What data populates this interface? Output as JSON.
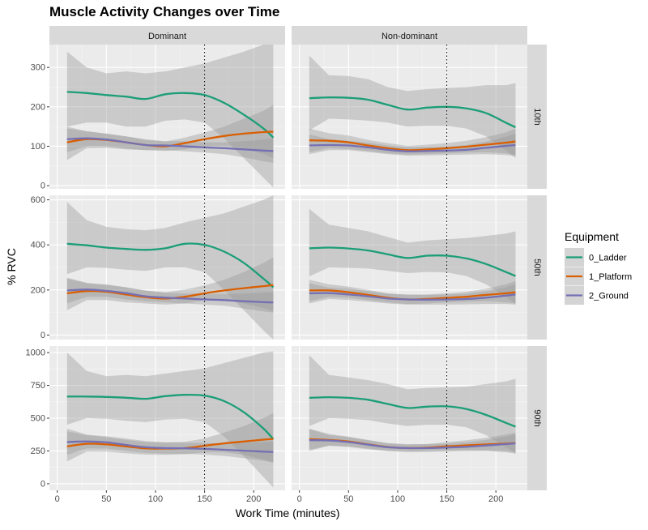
{
  "chart_data": {
    "type": "line",
    "title": "Muscle Activity Changes over Time",
    "xlabel": "Work Time (minutes)",
    "ylabel": "% RVC",
    "legend_title": "Equipment",
    "legend_position": "right",
    "grid": true,
    "reference_line_x": 150,
    "xlim": [
      -8,
      232
    ],
    "x_ticks": [
      0,
      50,
      100,
      150,
      200
    ],
    "x": [
      10,
      30,
      50,
      70,
      90,
      110,
      130,
      150,
      170,
      190,
      210,
      220
    ],
    "col_labels": [
      "Dominant",
      "Non-dominant"
    ],
    "row_labels": [
      "10th",
      "50th",
      "90th"
    ],
    "series_meta": [
      {
        "name": "0_Ladder",
        "color": "#1B9E77"
      },
      {
        "name": "1_Platform",
        "color": "#D95F02"
      },
      {
        "name": "2_Ground",
        "color": "#7570B3"
      }
    ],
    "panels": [
      {
        "row": "10th",
        "col": "Dominant",
        "ylim": [
          -8,
          358
        ],
        "y_ticks": [
          0,
          100,
          200,
          300
        ],
        "series": [
          {
            "values": [
              238,
              235,
              230,
              226,
              220,
              232,
              235,
              230,
              210,
              180,
              145,
              122
            ],
            "lower": [
              150,
              160,
              160,
              150,
              150,
              165,
              168,
              160,
              120,
              70,
              20,
              -5
            ],
            "upper": [
              340,
              300,
              285,
              290,
              285,
              290,
              300,
              310,
              325,
              340,
              358,
              358
            ]
          },
          {
            "values": [
              110,
              118,
              116,
              110,
              103,
              100,
              108,
              118,
              126,
              132,
              136,
              137
            ],
            "lower": [
              65,
              95,
              96,
              92,
              90,
              88,
              92,
              100,
              100,
              95,
              80,
              70
            ],
            "upper": [
              145,
              138,
              132,
              125,
              118,
              112,
              122,
              135,
              150,
              170,
              190,
              205
            ]
          },
          {
            "values": [
              118,
              120,
              117,
              110,
              103,
              102,
              100,
              97,
              95,
              92,
              89,
              88
            ],
            "lower": [
              85,
              100,
              100,
              94,
              90,
              90,
              87,
              84,
              80,
              72,
              62,
              58
            ],
            "upper": [
              150,
              138,
              132,
              125,
              116,
              113,
              113,
              110,
              110,
              113,
              117,
              120
            ]
          }
        ]
      },
      {
        "row": "10th",
        "col": "Non-dominant",
        "ylim": [
          -8,
          358
        ],
        "y_ticks": [
          0,
          100,
          200,
          300
        ],
        "series": [
          {
            "values": [
              222,
              224,
              223,
              218,
              205,
              193,
              198,
              200,
              196,
              184,
              160,
              148
            ],
            "lower": [
              140,
              170,
              168,
              165,
              160,
              150,
              152,
              152,
              145,
              125,
              90,
              70
            ],
            "upper": [
              330,
              280,
              278,
              270,
              250,
              240,
              245,
              248,
              250,
              255,
              255,
              260
            ]
          },
          {
            "values": [
              115,
              114,
              110,
              102,
              95,
              90,
              92,
              95,
              99,
              104,
              109,
              112
            ],
            "lower": [
              85,
              95,
              93,
              88,
              82,
              79,
              80,
              82,
              84,
              85,
              82,
              78
            ],
            "upper": [
              145,
              133,
              127,
              116,
              108,
              101,
              104,
              108,
              114,
              123,
              135,
              145
            ]
          },
          {
            "values": [
              102,
              103,
              102,
              97,
              91,
              87,
              88,
              89,
              91,
              96,
              101,
              103
            ],
            "lower": [
              80,
              90,
              90,
              85,
              80,
              76,
              77,
              78,
              79,
              80,
              78,
              75
            ],
            "upper": [
              130,
              118,
              114,
              109,
              102,
              98,
              99,
              100,
              103,
              112,
              124,
              132
            ]
          }
        ]
      },
      {
        "row": "50th",
        "col": "Dominant",
        "ylim": [
          -20,
          620
        ],
        "y_ticks": [
          0,
          200,
          400,
          600
        ],
        "series": [
          {
            "values": [
              405,
              398,
              388,
              382,
              378,
              385,
              405,
              400,
              370,
              320,
              250,
              212
            ],
            "lower": [
              270,
              300,
              298,
              290,
              285,
              300,
              300,
              280,
              200,
              110,
              20,
              -20
            ],
            "upper": [
              590,
              510,
              480,
              470,
              465,
              475,
              500,
              520,
              540,
              570,
              600,
              620
            ]
          },
          {
            "values": [
              185,
              195,
              192,
              180,
              168,
              162,
              170,
              185,
              198,
              208,
              217,
              222
            ],
            "lower": [
              110,
              155,
              155,
              145,
              140,
              135,
              140,
              155,
              155,
              140,
              120,
              105
            ],
            "upper": [
              250,
              230,
              225,
              212,
              198,
              190,
              202,
              220,
              245,
              280,
              320,
              345
            ]
          },
          {
            "values": [
              198,
              202,
              196,
              186,
              172,
              166,
              162,
              158,
              155,
              150,
              146,
              145
            ],
            "lower": [
              140,
              170,
              170,
              158,
              150,
              145,
              140,
              135,
              130,
              118,
              105,
              100
            ],
            "upper": [
              255,
              232,
              222,
              212,
              196,
              188,
              184,
              182,
              182,
              184,
              188,
              190
            ]
          }
        ]
      },
      {
        "row": "50th",
        "col": "Non-dominant",
        "ylim": [
          -20,
          620
        ],
        "y_ticks": [
          0,
          200,
          400,
          600
        ],
        "series": [
          {
            "values": [
              385,
              388,
              384,
              375,
              358,
              342,
              352,
              352,
              340,
              315,
              280,
              262
            ],
            "lower": [
              260,
              300,
              298,
              295,
              285,
              275,
              280,
              278,
              262,
              225,
              170,
              140
            ],
            "upper": [
              560,
              490,
              475,
              460,
              435,
              410,
              420,
              425,
              430,
              440,
              450,
              460
            ]
          },
          {
            "values": [
              198,
              198,
              190,
              178,
              165,
              158,
              160,
              165,
              170,
              178,
              185,
              190
            ],
            "lower": [
              150,
              170,
              165,
              155,
              145,
              138,
              140,
              145,
              148,
              150,
              145,
              140
            ],
            "upper": [
              245,
              225,
              215,
              200,
              185,
              178,
              180,
              185,
              192,
              205,
              225,
              240
            ]
          },
          {
            "values": [
              185,
              186,
              180,
              172,
              162,
              158,
              157,
              158,
              160,
              166,
              175,
              180
            ],
            "lower": [
              140,
              160,
              155,
              148,
              140,
              135,
              135,
              135,
              136,
              138,
              138,
              135
            ],
            "upper": [
              230,
              210,
              205,
              195,
              184,
              180,
              178,
              180,
              184,
              195,
              212,
              225
            ]
          }
        ]
      },
      {
        "row": "90th",
        "col": "Dominant",
        "ylim": [
          -50,
          1050
        ],
        "y_ticks": [
          0,
          250,
          500,
          750,
          1000
        ],
        "series": [
          {
            "values": [
              665,
              665,
              662,
              656,
              648,
              668,
              678,
              672,
              630,
              545,
              420,
              340
            ],
            "lower": [
              450,
              500,
              495,
              480,
              470,
              490,
              495,
              470,
              360,
              210,
              50,
              -30
            ],
            "upper": [
              1000,
              860,
              820,
              830,
              820,
              840,
              860,
              880,
              920,
              960,
              1000,
              1010
            ]
          },
          {
            "values": [
              285,
              305,
              300,
              285,
              270,
              268,
              272,
              290,
              308,
              322,
              336,
              342
            ],
            "lower": [
              170,
              245,
              245,
              232,
              222,
              220,
              225,
              240,
              240,
              220,
              185,
              160
            ],
            "upper": [
              400,
              370,
              355,
              335,
              318,
              315,
              320,
              345,
              390,
              440,
              500,
              540
            ]
          },
          {
            "values": [
              318,
              322,
              316,
              296,
              278,
              272,
              270,
              266,
              259,
              252,
              245,
              242
            ],
            "lower": [
              220,
              270,
              268,
              250,
              235,
              230,
              228,
              222,
              212,
              195,
              175,
              165
            ],
            "upper": [
              420,
              375,
              362,
              345,
              325,
              315,
              312,
              310,
              310,
              312,
              318,
              322
            ]
          }
        ]
      },
      {
        "row": "90th",
        "col": "Non-dominant",
        "ylim": [
          -50,
          1050
        ],
        "y_ticks": [
          0,
          250,
          500,
          750,
          1000
        ],
        "series": [
          {
            "values": [
              655,
              660,
              655,
              640,
              608,
              578,
              588,
              590,
              570,
              525,
              465,
              435
            ],
            "lower": [
              440,
              500,
              495,
              485,
              460,
              440,
              450,
              450,
              430,
              370,
              280,
              230
            ],
            "upper": [
              980,
              830,
              810,
              790,
              760,
              720,
              730,
              735,
              740,
              760,
              780,
              800
            ]
          },
          {
            "values": [
              340,
              334,
              322,
              300,
              280,
              272,
              275,
              285,
              293,
              300,
              306,
              310
            ],
            "lower": [
              260,
              290,
              285,
              268,
              252,
              245,
              248,
              252,
              255,
              252,
              240,
              230
            ],
            "upper": [
              420,
              380,
              360,
              332,
              308,
              298,
              302,
              318,
              332,
              350,
              375,
              390
            ]
          },
          {
            "values": [
              332,
              330,
              318,
              298,
              278,
              272,
              272,
              276,
              282,
              292,
              302,
              308
            ],
            "lower": [
              250,
              290,
              280,
              262,
              248,
              242,
              242,
              245,
              248,
              250,
              248,
              240
            ],
            "upper": [
              415,
              372,
              355,
              334,
              310,
              302,
              302,
              306,
              316,
              334,
              360,
              378
            ]
          }
        ]
      }
    ]
  }
}
